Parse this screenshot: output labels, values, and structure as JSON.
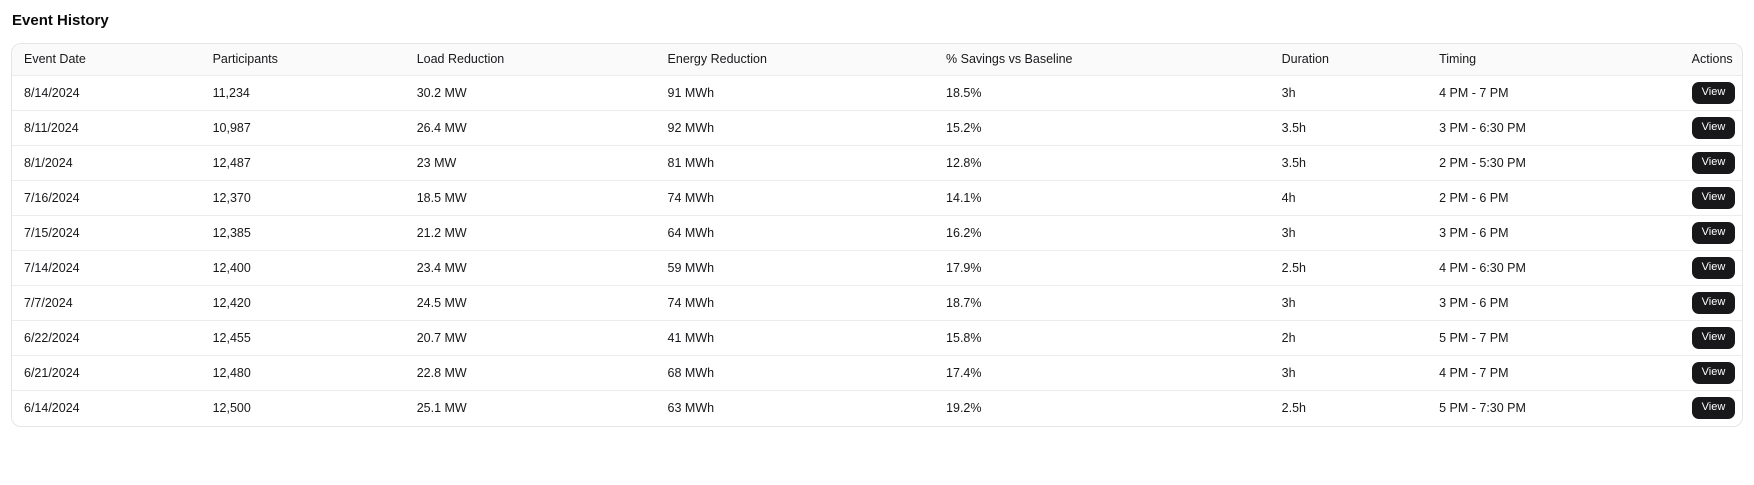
{
  "title": "Event History",
  "table": {
    "columns": [
      {
        "key": "event_date",
        "label": "Event Date"
      },
      {
        "key": "participants",
        "label": "Participants"
      },
      {
        "key": "load_reduction",
        "label": "Load Reduction"
      },
      {
        "key": "energy_reduction",
        "label": "Energy Reduction"
      },
      {
        "key": "savings_vs_baseline",
        "label": "% Savings vs Baseline"
      },
      {
        "key": "duration",
        "label": "Duration"
      },
      {
        "key": "timing",
        "label": "Timing"
      },
      {
        "key": "actions",
        "label": "Actions"
      }
    ],
    "action_label": "View",
    "rows": [
      {
        "event_date": "8/14/2024",
        "participants": "11,234",
        "load_reduction": "30.2 MW",
        "energy_reduction": "91 MWh",
        "savings_vs_baseline": "18.5%",
        "duration": "3h",
        "timing": "4 PM - 7 PM"
      },
      {
        "event_date": "8/11/2024",
        "participants": "10,987",
        "load_reduction": "26.4 MW",
        "energy_reduction": "92 MWh",
        "savings_vs_baseline": "15.2%",
        "duration": "3.5h",
        "timing": "3 PM - 6:30 PM"
      },
      {
        "event_date": "8/1/2024",
        "participants": "12,487",
        "load_reduction": "23 MW",
        "energy_reduction": "81 MWh",
        "savings_vs_baseline": "12.8%",
        "duration": "3.5h",
        "timing": "2 PM - 5:30 PM"
      },
      {
        "event_date": "7/16/2024",
        "participants": "12,370",
        "load_reduction": "18.5 MW",
        "energy_reduction": "74 MWh",
        "savings_vs_baseline": "14.1%",
        "duration": "4h",
        "timing": "2 PM - 6 PM"
      },
      {
        "event_date": "7/15/2024",
        "participants": "12,385",
        "load_reduction": "21.2 MW",
        "energy_reduction": "64 MWh",
        "savings_vs_baseline": "16.2%",
        "duration": "3h",
        "timing": "3 PM - 6 PM"
      },
      {
        "event_date": "7/14/2024",
        "participants": "12,400",
        "load_reduction": "23.4 MW",
        "energy_reduction": "59 MWh",
        "savings_vs_baseline": "17.9%",
        "duration": "2.5h",
        "timing": "4 PM - 6:30 PM"
      },
      {
        "event_date": "7/7/2024",
        "participants": "12,420",
        "load_reduction": "24.5 MW",
        "energy_reduction": "74 MWh",
        "savings_vs_baseline": "18.7%",
        "duration": "3h",
        "timing": "3 PM - 6 PM"
      },
      {
        "event_date": "6/22/2024",
        "participants": "12,455",
        "load_reduction": "20.7 MW",
        "energy_reduction": "41 MWh",
        "savings_vs_baseline": "15.8%",
        "duration": "2h",
        "timing": "5 PM - 7 PM"
      },
      {
        "event_date": "6/21/2024",
        "participants": "12,480",
        "load_reduction": "22.8 MW",
        "energy_reduction": "68 MWh",
        "savings_vs_baseline": "17.4%",
        "duration": "3h",
        "timing": "4 PM - 7 PM"
      },
      {
        "event_date": "6/14/2024",
        "participants": "12,500",
        "load_reduction": "25.1 MW",
        "energy_reduction": "63 MWh",
        "savings_vs_baseline": "19.2%",
        "duration": "2.5h",
        "timing": "5 PM - 7:30 PM"
      }
    ]
  },
  "colors": {
    "view_button_bg": "#18181b",
    "view_button_text": "#ffffff",
    "header_bg": "#fafafa",
    "card_border": "#e5e5e7",
    "row_border": "#ececee",
    "text": "#18181b"
  }
}
